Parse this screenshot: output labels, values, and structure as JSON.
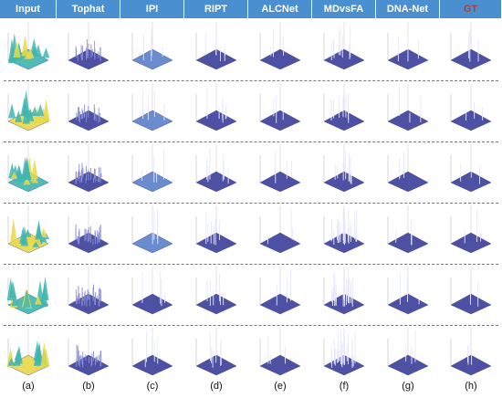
{
  "methods": [
    {
      "name": "Input",
      "label": "(a)"
    },
    {
      "name": "Tophat",
      "label": "(b)"
    },
    {
      "name": "IPI",
      "label": "(c)"
    },
    {
      "name": "RIPT",
      "label": "(d)"
    },
    {
      "name": "ALCNet",
      "label": "(e)"
    },
    {
      "name": "MDvsFA",
      "label": "(f)"
    },
    {
      "name": "DNA-Net",
      "label": "(g)"
    },
    {
      "name": "GT",
      "label": "(h)"
    }
  ],
  "colors": {
    "header_bg": "#4a8fd0",
    "gt_text": "#c0392b",
    "plane": "#3b3f9a",
    "plane_light": "#5a7fc8",
    "surface_yellow": "#e8d84a",
    "surface_teal": "#3fb5b0"
  },
  "rows": 6
}
